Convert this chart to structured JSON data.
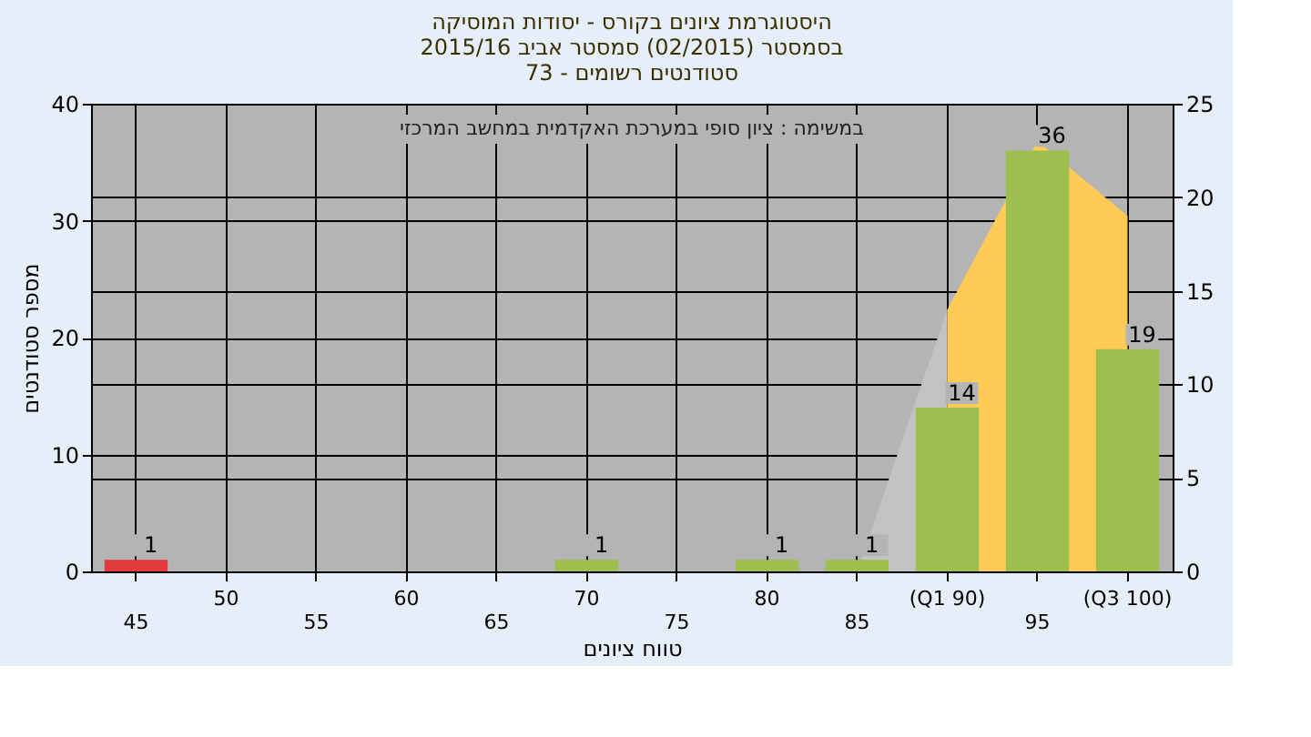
{
  "chart_data": {
    "type": "bar",
    "title": [
      "היסטוגרמת ציונים בקורס - יסודות המוסיקה",
      "בסמסטר  (02/2015)  סמסטר אביב 2015/16",
      "סטודנטים רשומים - 73"
    ],
    "annotations": [
      "במשימה : ציון סופי במערכת האקדמית במחשב המרכזי"
    ],
    "xlabel": "טווח ציונים",
    "ylabel": "מספר סטודנטים",
    "categories": [
      "45",
      "50",
      "55",
      "60",
      "65",
      "70",
      "75",
      "80",
      "85",
      "(Q1 90)",
      "95",
      "(Q3 100)"
    ],
    "series": [
      {
        "type": "bar",
        "colors": [
          "#e03a3a",
          "#9cbf4e",
          "#9cbf4e",
          "#9cbf4e",
          "#9cbf4e",
          "#9cbf4e",
          "#9cbf4e",
          "#9cbf4e",
          "#9cbf4e",
          "#9cbf4e",
          "#9cbf4e",
          "#9cbf4e"
        ],
        "values": [
          1,
          0,
          0,
          0,
          0,
          1,
          0,
          1,
          1,
          14,
          36,
          19
        ],
        "value_labels": [
          "1",
          null,
          null,
          null,
          null,
          "1",
          null,
          "1",
          "1",
          "14",
          "36",
          "19"
        ]
      },
      {
        "type": "area",
        "axis": "y2",
        "color": "#c2c2c2",
        "values": [
          null,
          null,
          null,
          null,
          null,
          null,
          null,
          null,
          0,
          14,
          null,
          null
        ]
      },
      {
        "type": "area",
        "axis": "y2",
        "color": "#ffca55",
        "values": [
          null,
          null,
          null,
          null,
          null,
          null,
          null,
          null,
          null,
          14,
          23,
          19
        ]
      }
    ],
    "ylim": [
      0,
      40
    ],
    "yticks": [
      0,
      10,
      20,
      30,
      40
    ],
    "y2lim": [
      0,
      25
    ],
    "y2ticks": [
      0,
      5,
      10,
      15,
      20,
      25
    ],
    "grid": true,
    "legend": false
  }
}
